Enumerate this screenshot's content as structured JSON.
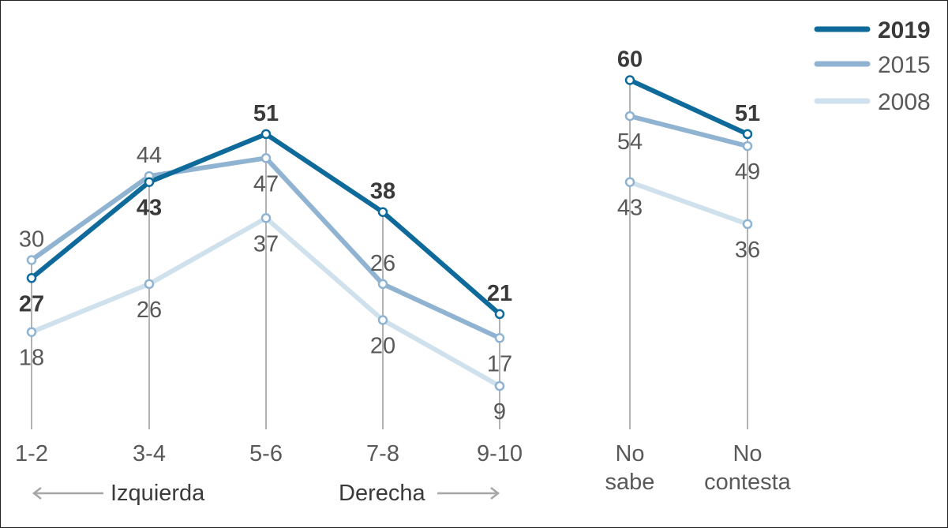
{
  "chart_data": [
    {
      "type": "line",
      "categories": [
        "1-2",
        "3-4",
        "5-6",
        "7-8",
        "9-10"
      ],
      "series": [
        {
          "name": "2019",
          "values": [
            27,
            43,
            51,
            38,
            21
          ],
          "color": "#0e6a9a"
        },
        {
          "name": "2015",
          "values": [
            30,
            44,
            47,
            26,
            17
          ],
          "color": "#8fb3d1"
        },
        {
          "name": "2008",
          "values": [
            18,
            26,
            37,
            20,
            9
          ],
          "color": "#cfe1ec"
        }
      ],
      "ylim": [
        -5,
        67
      ],
      "grid": false,
      "direction_labels": {
        "left": "Izquierda",
        "right": "Derecha"
      }
    },
    {
      "type": "line",
      "categories": [
        "No sabe",
        "No contesta"
      ],
      "series": [
        {
          "name": "2019",
          "values": [
            60,
            51
          ],
          "color": "#0e6a9a"
        },
        {
          "name": "2015",
          "values": [
            54,
            49
          ],
          "color": "#8fb3d1"
        },
        {
          "name": "2008",
          "values": [
            43,
            36
          ],
          "color": "#cfe1ec"
        }
      ],
      "ylim": [
        -5,
        67
      ],
      "grid": false
    }
  ],
  "legend": {
    "placement": "top-right",
    "entries": [
      {
        "name": "2019",
        "color": "#0e6a9a",
        "bold": true
      },
      {
        "name": "2015",
        "color": "#8fb3d1",
        "bold": false
      },
      {
        "name": "2008",
        "color": "#cfe1ec",
        "bold": false
      }
    ]
  }
}
